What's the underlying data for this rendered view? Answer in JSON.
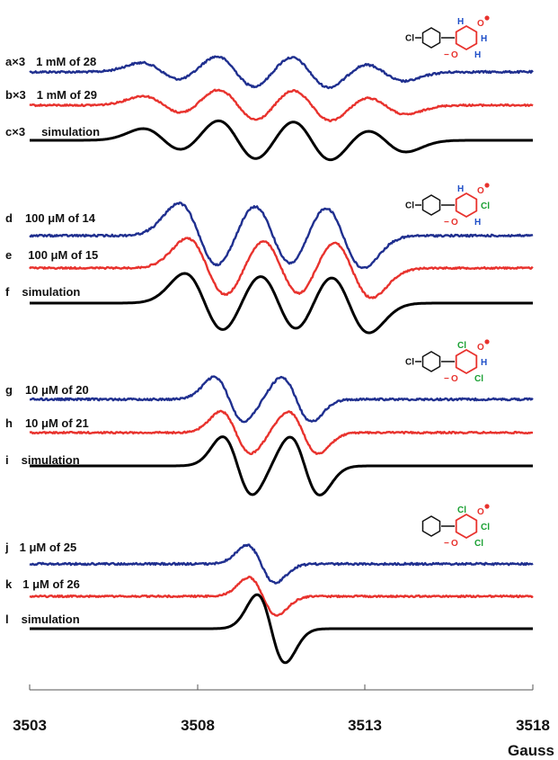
{
  "chart_data": {
    "type": "line",
    "title": "",
    "xlabel": "Gauss",
    "ylabel": "",
    "xlim": [
      3503,
      3518
    ],
    "x_ticks": [
      "3503",
      "3508",
      "3513",
      "3518"
    ],
    "grid": false,
    "colors": {
      "experimental_1": "#1f2f8f",
      "experimental_2": "#e8322d",
      "simulation": "#000000",
      "ring": "#e8322d",
      "hydrogen": "#1f4fc8",
      "chlorine": "#1aa033"
    },
    "groups": [
      {
        "spectrum": "triplet (unsubstituted)",
        "line_centers_gauss": [
          3507.0,
          3509.2,
          3511.4,
          3513.6
        ],
        "structure": {
          "para": "Cl",
          "labels": [
            "H",
            "H",
            "H"
          ]
        },
        "traces": [
          {
            "label": "a×3",
            "desc": "1 mM of 28",
            "kind": "experimental_1"
          },
          {
            "label": "b×3",
            "desc": "1 mM of 29",
            "kind": "experimental_2"
          },
          {
            "label": "c×3",
            "desc": "simulation",
            "kind": "simulation"
          }
        ]
      },
      {
        "spectrum": "triplet (one Cl)",
        "line_centers_gauss": [
          3508.3,
          3510.5,
          3512.6
        ],
        "structure": {
          "para": "Cl",
          "labels": [
            "H",
            "Cl",
            "H"
          ]
        },
        "traces": [
          {
            "label": "d",
            "desc": "100 μM of 14",
            "kind": "experimental_1"
          },
          {
            "label": "e",
            "desc": "100 μM of 15",
            "kind": "experimental_2"
          },
          {
            "label": "f",
            "desc": "simulation",
            "kind": "simulation"
          }
        ]
      },
      {
        "spectrum": "doublet",
        "line_centers_gauss": [
          3509.2,
          3511.2
        ],
        "structure": {
          "para": "Cl",
          "labels": [
            "Cl",
            "H",
            "Cl"
          ]
        },
        "traces": [
          {
            "label": "g",
            "desc": "10 μM of 20",
            "kind": "experimental_1"
          },
          {
            "label": "h",
            "desc": "10 μM of 21",
            "kind": "experimental_2"
          },
          {
            "label": "i",
            "desc": "simulation",
            "kind": "simulation"
          }
        ]
      },
      {
        "spectrum": "singlet",
        "line_centers_gauss": [
          3510.2
        ],
        "structure": {
          "para": "",
          "labels": [
            "Cl",
            "Cl",
            "Cl"
          ]
        },
        "traces": [
          {
            "label": "j",
            "desc": "1 μM of 25",
            "kind": "experimental_1"
          },
          {
            "label": "k",
            "desc": "1 μM of 26",
            "kind": "experimental_2"
          },
          {
            "label": "l",
            "desc": "simulation",
            "kind": "simulation"
          }
        ]
      }
    ]
  }
}
